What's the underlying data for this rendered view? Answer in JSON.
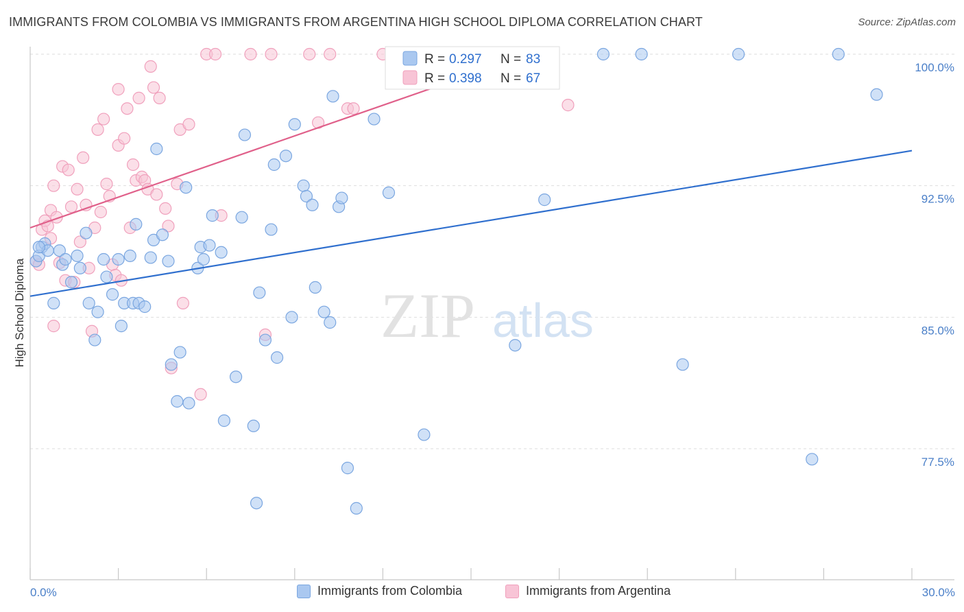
{
  "title": "IMMIGRANTS FROM COLOMBIA VS IMMIGRANTS FROM ARGENTINA HIGH SCHOOL DIPLOMA CORRELATION CHART",
  "source": "Source: ZipAtlas.com",
  "watermark": {
    "zip": "ZIP",
    "atlas": "atlas"
  },
  "chart_data": {
    "type": "scatter",
    "title": "IMMIGRANTS FROM COLOMBIA VS IMMIGRANTS FROM ARGENTINA HIGH SCHOOL DIPLOMA CORRELATION CHART",
    "xlabel": "",
    "ylabel": "High School Diploma",
    "xlim": [
      0,
      30
    ],
    "ylim": [
      71.5,
      101.5
    ],
    "x_tick_labels": [
      "0.0%",
      "30.0%"
    ],
    "y_ticks": [
      77.5,
      85.0,
      92.5,
      100.0
    ],
    "y_tick_labels": [
      "77.5%",
      "85.0%",
      "92.5%",
      "100.0%"
    ],
    "grid": true,
    "legend_position": "top-center",
    "series": [
      {
        "name": "Immigrants from Colombia",
        "color": "#7aa6e0",
        "fill": "#aac8f0",
        "line_color": "#2f6fce",
        "R": "0.297",
        "N": "83",
        "trend": {
          "x": [
            0,
            30
          ],
          "y": [
            86.2,
            94.5
          ]
        },
        "points": [
          [
            0.2,
            88.2
          ],
          [
            0.3,
            88.5
          ],
          [
            0.4,
            89.0
          ],
          [
            0.5,
            89.2
          ],
          [
            0.6,
            88.8
          ],
          [
            0.8,
            85.8
          ],
          [
            1.0,
            88.8
          ],
          [
            1.1,
            88.0
          ],
          [
            1.2,
            88.3
          ],
          [
            1.4,
            87.0
          ],
          [
            1.6,
            88.5
          ],
          [
            1.7,
            87.8
          ],
          [
            1.9,
            89.8
          ],
          [
            2.0,
            85.8
          ],
          [
            2.2,
            83.7
          ],
          [
            2.3,
            85.3
          ],
          [
            2.5,
            88.3
          ],
          [
            2.6,
            87.3
          ],
          [
            2.8,
            86.3
          ],
          [
            3.0,
            88.3
          ],
          [
            3.1,
            84.5
          ],
          [
            3.2,
            85.8
          ],
          [
            3.4,
            88.5
          ],
          [
            3.5,
            85.8
          ],
          [
            3.6,
            90.3
          ],
          [
            3.7,
            85.8
          ],
          [
            3.9,
            85.6
          ],
          [
            4.1,
            88.4
          ],
          [
            4.2,
            89.4
          ],
          [
            4.3,
            94.6
          ],
          [
            4.5,
            89.7
          ],
          [
            4.7,
            88.2
          ],
          [
            4.8,
            82.3
          ],
          [
            5.0,
            80.2
          ],
          [
            5.1,
            83.0
          ],
          [
            5.3,
            92.4
          ],
          [
            5.4,
            80.1
          ],
          [
            5.7,
            87.8
          ],
          [
            5.8,
            89.0
          ],
          [
            5.9,
            88.3
          ],
          [
            6.1,
            89.1
          ],
          [
            6.2,
            90.8
          ],
          [
            6.5,
            88.7
          ],
          [
            6.6,
            79.1
          ],
          [
            7.0,
            81.6
          ],
          [
            7.2,
            90.7
          ],
          [
            7.3,
            95.4
          ],
          [
            7.6,
            78.8
          ],
          [
            7.7,
            74.4
          ],
          [
            7.8,
            86.4
          ],
          [
            8.0,
            83.7
          ],
          [
            8.2,
            90.0
          ],
          [
            8.3,
            93.7
          ],
          [
            8.4,
            82.7
          ],
          [
            8.7,
            94.2
          ],
          [
            8.9,
            85.0
          ],
          [
            9.0,
            96.0
          ],
          [
            9.3,
            92.5
          ],
          [
            9.4,
            91.9
          ],
          [
            9.6,
            91.4
          ],
          [
            9.7,
            86.7
          ],
          [
            10.0,
            85.3
          ],
          [
            10.2,
            84.7
          ],
          [
            10.3,
            97.6
          ],
          [
            10.5,
            91.3
          ],
          [
            10.6,
            91.8
          ],
          [
            10.8,
            76.4
          ],
          [
            11.1,
            74.1
          ],
          [
            11.7,
            96.3
          ],
          [
            12.2,
            92.1
          ],
          [
            12.5,
            100.0
          ],
          [
            13.4,
            78.3
          ],
          [
            14.0,
            100.0
          ],
          [
            16.5,
            83.4
          ],
          [
            17.5,
            91.7
          ],
          [
            19.5,
            100.0
          ],
          [
            20.8,
            100.0
          ],
          [
            22.2,
            82.3
          ],
          [
            24.1,
            100.0
          ],
          [
            26.6,
            76.9
          ],
          [
            27.5,
            100.0
          ],
          [
            28.8,
            97.7
          ],
          [
            0.3,
            89.0
          ]
        ]
      },
      {
        "name": "Immigrants from Argentina",
        "color": "#f0a0bc",
        "fill": "#f8c4d6",
        "line_color": "#e0608a",
        "R": "0.398",
        "N": "67",
        "trend": {
          "x": [
            0,
            17
          ],
          "y": [
            90.1,
            100.0
          ]
        },
        "points": [
          [
            0.2,
            88.2
          ],
          [
            0.3,
            88.0
          ],
          [
            0.4,
            90.0
          ],
          [
            0.5,
            90.5
          ],
          [
            0.6,
            90.2
          ],
          [
            0.7,
            89.5
          ],
          [
            0.7,
            91.1
          ],
          [
            0.8,
            92.5
          ],
          [
            0.9,
            90.7
          ],
          [
            1.0,
            88.1
          ],
          [
            1.1,
            93.6
          ],
          [
            1.2,
            87.1
          ],
          [
            1.3,
            93.4
          ],
          [
            1.4,
            91.3
          ],
          [
            1.5,
            87.0
          ],
          [
            1.6,
            92.3
          ],
          [
            1.7,
            89.3
          ],
          [
            1.8,
            94.1
          ],
          [
            1.9,
            91.4
          ],
          [
            2.0,
            87.8
          ],
          [
            2.1,
            84.2
          ],
          [
            2.2,
            90.1
          ],
          [
            2.3,
            95.7
          ],
          [
            2.4,
            91.0
          ],
          [
            2.5,
            96.3
          ],
          [
            2.6,
            92.6
          ],
          [
            2.7,
            91.9
          ],
          [
            2.8,
            88.0
          ],
          [
            2.9,
            87.4
          ],
          [
            3.0,
            94.8
          ],
          [
            3.1,
            87.1
          ],
          [
            3.2,
            95.2
          ],
          [
            3.3,
            96.9
          ],
          [
            3.4,
            90.1
          ],
          [
            3.5,
            93.7
          ],
          [
            3.6,
            92.8
          ],
          [
            3.7,
            97.5
          ],
          [
            3.8,
            93.0
          ],
          [
            3.9,
            92.8
          ],
          [
            4.0,
            92.3
          ],
          [
            4.1,
            99.3
          ],
          [
            4.2,
            98.1
          ],
          [
            4.3,
            92.0
          ],
          [
            4.4,
            97.5
          ],
          [
            4.6,
            91.2
          ],
          [
            4.7,
            90.2
          ],
          [
            4.8,
            82.1
          ],
          [
            5.0,
            92.6
          ],
          [
            5.1,
            95.7
          ],
          [
            5.2,
            85.8
          ],
          [
            5.4,
            96.0
          ],
          [
            5.8,
            80.6
          ],
          [
            6.0,
            100.0
          ],
          [
            6.3,
            100.0
          ],
          [
            6.5,
            90.8
          ],
          [
            7.5,
            100.0
          ],
          [
            8.0,
            84.0
          ],
          [
            8.2,
            100.0
          ],
          [
            9.5,
            100.0
          ],
          [
            9.8,
            96.1
          ],
          [
            10.2,
            100.0
          ],
          [
            10.8,
            96.9
          ],
          [
            11.0,
            96.9
          ],
          [
            12.0,
            100.0
          ],
          [
            18.3,
            97.1
          ],
          [
            0.8,
            84.5
          ],
          [
            3.0,
            98.0
          ]
        ]
      }
    ]
  },
  "legend": {
    "r_label": "R =",
    "n_label": "N =",
    "rows": [
      {
        "r": "0.297",
        "n": "83"
      },
      {
        "r": "0.398",
        "n": "67"
      }
    ]
  },
  "bottom_legend": [
    "Immigrants from Colombia",
    "Immigrants from Argentina"
  ]
}
